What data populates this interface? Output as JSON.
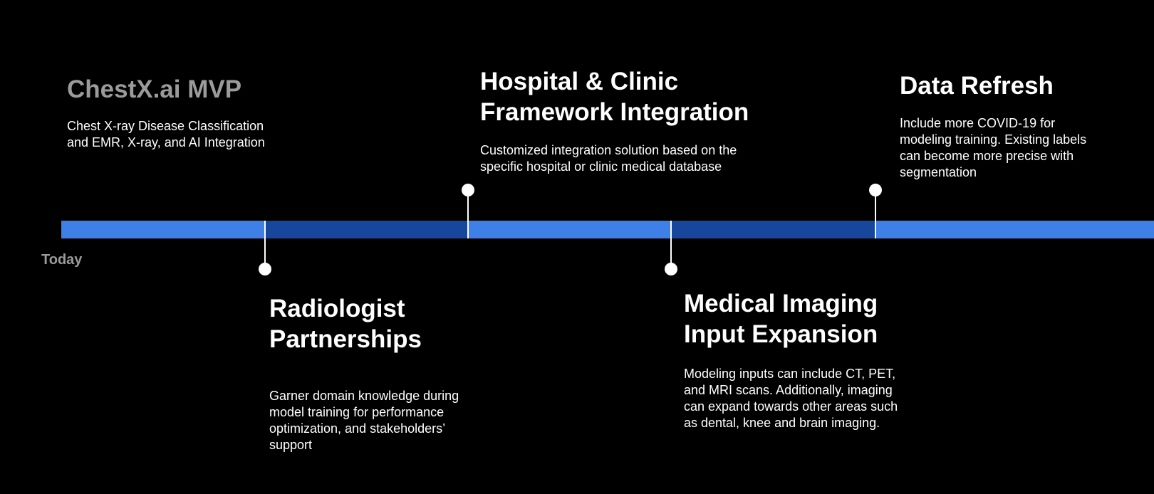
{
  "timeline": {
    "start_label": "Today",
    "colors": {
      "background": "#000000",
      "bar_light": "#3f7fe8",
      "bar_dark": "#17479c",
      "muted_text": "#9b9b9b",
      "text": "#ffffff"
    },
    "milestones": [
      {
        "title": "ChestX.ai MVP",
        "description": "Chest X-ray Disease Classification and EMR, X-ray, and AI Integration"
      },
      {
        "title": "Radiologist Partnerships",
        "description": "Garner domain knowledge during model training for performance optimization, and stakeholders’ support"
      },
      {
        "title": "Hospital & Clinic Framework Integration",
        "description": "Customized integration solution based on the specific hospital or clinic medical database"
      },
      {
        "title": "Medical Imaging Input Expansion",
        "description": "Modeling inputs can include CT, PET, and MRI scans. Additionally, imaging can expand towards other areas such as dental, knee and brain imaging."
      },
      {
        "title": "Data Refresh",
        "description": "Include more COVID-19 for modeling training. Existing labels can become more precise with segmentation"
      }
    ]
  }
}
